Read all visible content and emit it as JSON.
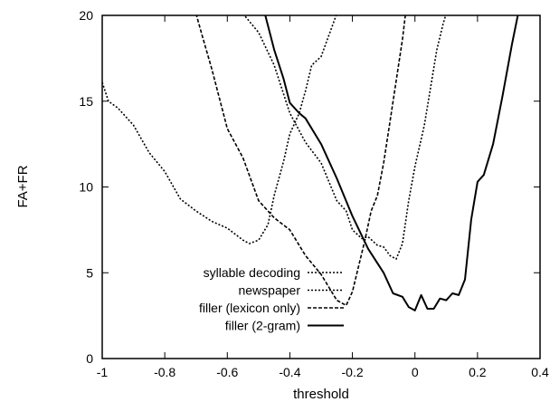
{
  "chart_data": {
    "type": "line",
    "xlabel": "threshold",
    "ylabel": "FA+FR",
    "xlim": [
      -1,
      0.4
    ],
    "ylim": [
      0,
      20
    ],
    "xticks": [
      -1,
      -0.8,
      -0.6,
      -0.4,
      -0.2,
      0,
      0.2,
      0.4
    ],
    "yticks": [
      0,
      5,
      10,
      15,
      20
    ],
    "xtick_labels": [
      "-1",
      "-0.8",
      "-0.6",
      "-0.4",
      "-0.2",
      "0",
      "0.2",
      "0.4"
    ],
    "ytick_labels": [
      "0",
      "5",
      "10",
      "15",
      "20"
    ],
    "grid": false,
    "legend_position": "bottom-left",
    "series": [
      {
        "name": "syllable decoding",
        "style": "dotted",
        "x": [
          -1,
          -0.98,
          -0.95,
          -0.9,
          -0.85,
          -0.8,
          -0.75,
          -0.7,
          -0.65,
          -0.6,
          -0.55,
          -0.53,
          -0.5,
          -0.47,
          -0.45,
          -0.42,
          -0.4,
          -0.37,
          -0.35,
          -0.33,
          -0.3,
          -0.28,
          -0.25,
          -0.23,
          -0.2
        ],
        "y": [
          16.1,
          15.0,
          14.6,
          13.6,
          12.0,
          10.9,
          9.3,
          8.6,
          8.0,
          7.6,
          6.9,
          6.7,
          6.9,
          7.8,
          9.5,
          11.5,
          13.1,
          14.3,
          15.6,
          17.1,
          17.6,
          18.6,
          20.1,
          21.5,
          23.0
        ]
      },
      {
        "name": "newspaper",
        "style": "dotted",
        "x": [
          -0.55,
          -0.5,
          -0.45,
          -0.4,
          -0.35,
          -0.3,
          -0.25,
          -0.22,
          -0.2,
          -0.17,
          -0.15,
          -0.12,
          -0.1,
          -0.08,
          -0.06,
          -0.04,
          -0.02,
          0,
          0.03,
          0.05,
          0.07,
          0.09,
          0.1
        ],
        "y": [
          20.1,
          19.0,
          17.1,
          14.3,
          12.6,
          11.4,
          9.2,
          8.6,
          7.5,
          7.0,
          7.1,
          6.6,
          6.5,
          6.0,
          5.8,
          6.7,
          9.2,
          11.2,
          13.6,
          15.8,
          18.0,
          19.5,
          20.1
        ]
      },
      {
        "name": "filler (lexicon only)",
        "style": "dashed",
        "x": [
          -0.7,
          -0.68,
          -0.65,
          -0.6,
          -0.55,
          -0.5,
          -0.45,
          -0.4,
          -0.35,
          -0.3,
          -0.27,
          -0.25,
          -0.23,
          -0.22,
          -0.2,
          -0.18,
          -0.16,
          -0.14,
          -0.12,
          -0.1,
          -0.08,
          -0.06,
          -0.04,
          -0.03
        ],
        "y": [
          20.1,
          18.8,
          16.9,
          13.4,
          11.7,
          9.2,
          8.2,
          7.5,
          6.0,
          4.9,
          4.0,
          3.4,
          3.2,
          3.1,
          3.9,
          5.4,
          6.9,
          8.6,
          9.5,
          11.4,
          13.8,
          16.2,
          18.6,
          20.1
        ]
      },
      {
        "name": "filler (2-gram)",
        "style": "solid",
        "x": [
          -0.48,
          -0.45,
          -0.42,
          -0.4,
          -0.37,
          -0.35,
          -0.3,
          -0.25,
          -0.2,
          -0.15,
          -0.1,
          -0.07,
          -0.04,
          -0.02,
          0,
          0.02,
          0.04,
          0.06,
          0.08,
          0.1,
          0.12,
          0.14,
          0.16,
          0.18,
          0.2,
          0.22,
          0.25,
          0.28,
          0.31,
          0.33
        ],
        "y": [
          20.1,
          18.0,
          16.3,
          14.9,
          14.3,
          14.0,
          12.5,
          10.5,
          8.3,
          6.4,
          5.0,
          3.8,
          3.6,
          3.0,
          2.8,
          3.7,
          2.9,
          2.9,
          3.5,
          3.4,
          3.8,
          3.7,
          4.6,
          8.1,
          10.3,
          10.7,
          12.5,
          15.3,
          18.3,
          20.1
        ]
      }
    ]
  }
}
